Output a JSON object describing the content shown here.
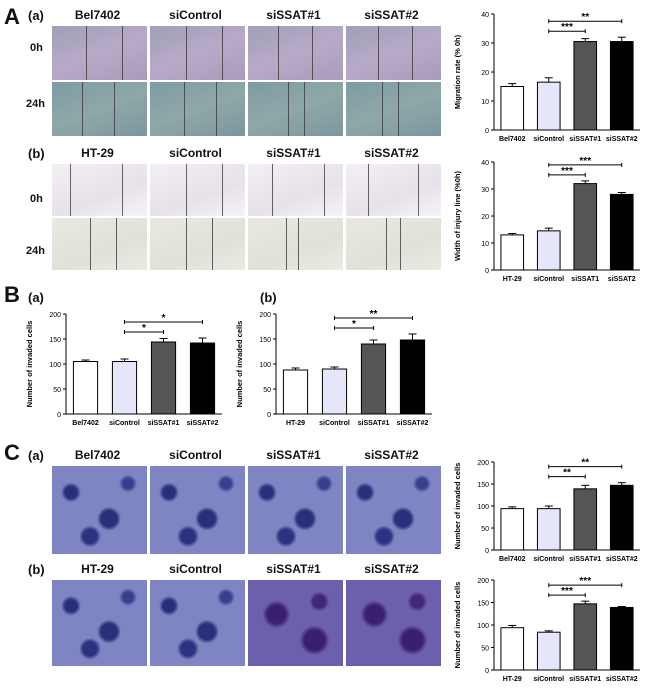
{
  "sections": {
    "A": {
      "letter": "A",
      "a": "(a)",
      "b": "(b)",
      "rows": [
        "0h",
        "24h"
      ],
      "a_cols": [
        "Bel7402",
        "siControl",
        "siSSAT#1",
        "siSSAT#2"
      ],
      "b_cols": [
        "HT-29",
        "siControl",
        "siSSAT#1",
        "siSSAT#2"
      ]
    },
    "B": {
      "letter": "B",
      "a": "(a)",
      "b": "(b)"
    },
    "C": {
      "letter": "C",
      "a": "(a)",
      "b": "(b)",
      "a_cols": [
        "Bel7402",
        "siControl",
        "siSSAT#1",
        "siSSAT#2"
      ],
      "b_cols": [
        "HT-29",
        "siControl",
        "siSSAT#1",
        "siSSAT#2"
      ]
    }
  },
  "chart_data": [
    {
      "id": "Aa",
      "type": "bar",
      "ylabel": "Migration rate (% 0h)",
      "ylim": [
        0,
        40
      ],
      "yticks": [
        0,
        10,
        20,
        30,
        40
      ],
      "categories": [
        "Bel7402",
        "siControl",
        "siSSAT#1",
        "siSSAT#2"
      ],
      "values": [
        15,
        16.5,
        30.5,
        30.5
      ],
      "errors": [
        1,
        1.5,
        1,
        1.5
      ],
      "colors": [
        "#ffffff",
        "#e6e6fa",
        "#555555",
        "#000000"
      ],
      "annotations": [
        {
          "from": 1,
          "to": 2,
          "level": 1,
          "label": "***"
        },
        {
          "from": 1,
          "to": 3,
          "level": 2,
          "label": "**"
        }
      ]
    },
    {
      "id": "Ab",
      "type": "bar",
      "ylabel": "Width of injury line (%0h)",
      "ylim": [
        0,
        40
      ],
      "yticks": [
        0,
        10,
        20,
        30,
        40
      ],
      "categories": [
        "HT-29",
        "siControl",
        "siSSAT1",
        "siSSAT2"
      ],
      "values": [
        13,
        14.5,
        32,
        28
      ],
      "errors": [
        0.5,
        1,
        1,
        0.7
      ],
      "colors": [
        "#ffffff",
        "#e6e6fa",
        "#555555",
        "#000000"
      ],
      "annotations": [
        {
          "from": 1,
          "to": 2,
          "level": 1,
          "label": "***"
        },
        {
          "from": 1,
          "to": 3,
          "level": 2,
          "label": "***"
        }
      ]
    },
    {
      "id": "Ba",
      "type": "bar",
      "ylabel": "Number of invaded cells",
      "ylim": [
        0,
        200
      ],
      "yticks": [
        0,
        50,
        100,
        150,
        200
      ],
      "categories": [
        "Bel7402",
        "siControl",
        "siSSAT#1",
        "siSSAT#2"
      ],
      "values": [
        105,
        105,
        144,
        142
      ],
      "errors": [
        3,
        5,
        7,
        10
      ],
      "colors": [
        "#ffffff",
        "#e6e6fa",
        "#555555",
        "#000000"
      ],
      "annotations": [
        {
          "from": 1,
          "to": 2,
          "level": 1,
          "label": "*"
        },
        {
          "from": 1,
          "to": 3,
          "level": 2,
          "label": "*"
        }
      ]
    },
    {
      "id": "Bb",
      "type": "bar",
      "ylabel": "Number of invaded cells",
      "ylim": [
        0,
        200
      ],
      "yticks": [
        0,
        50,
        100,
        150,
        200
      ],
      "categories": [
        "HT-29",
        "siControl",
        "siSSAT#1",
        "siSSAT#2"
      ],
      "values": [
        88,
        90,
        140,
        148
      ],
      "errors": [
        4,
        4,
        8,
        12
      ],
      "colors": [
        "#ffffff",
        "#e6e6fa",
        "#555555",
        "#000000"
      ],
      "annotations": [
        {
          "from": 1,
          "to": 2,
          "level": 1,
          "label": "*"
        },
        {
          "from": 1,
          "to": 3,
          "level": 2,
          "label": "**"
        }
      ]
    },
    {
      "id": "Ca",
      "type": "bar",
      "ylabel": "Number of invaded cells",
      "ylim": [
        0,
        200
      ],
      "yticks": [
        0,
        50,
        100,
        150,
        200
      ],
      "categories": [
        "Bel7402",
        "siControl",
        "siSSAT#1",
        "siSSAT#2"
      ],
      "values": [
        94,
        94,
        139,
        147
      ],
      "errors": [
        4,
        6,
        8,
        6
      ],
      "colors": [
        "#ffffff",
        "#e6e6fa",
        "#555555",
        "#000000"
      ],
      "annotations": [
        {
          "from": 1,
          "to": 2,
          "level": 1,
          "label": "**"
        },
        {
          "from": 1,
          "to": 3,
          "level": 2,
          "label": "**"
        }
      ]
    },
    {
      "id": "Cb",
      "type": "bar",
      "ylabel": "Number of invaded cells",
      "ylim": [
        0,
        200
      ],
      "yticks": [
        0,
        50,
        100,
        150,
        200
      ],
      "categories": [
        "HT-29",
        "siControl",
        "siSSAT#1",
        "siSSAT#2"
      ],
      "values": [
        94,
        84,
        147,
        139
      ],
      "errors": [
        5,
        3,
        6,
        2
      ],
      "colors": [
        "#ffffff",
        "#e6e6fa",
        "#555555",
        "#000000"
      ],
      "annotations": [
        {
          "from": 1,
          "to": 2,
          "level": 1,
          "label": "***"
        },
        {
          "from": 1,
          "to": 3,
          "level": 2,
          "label": "***"
        }
      ]
    }
  ]
}
